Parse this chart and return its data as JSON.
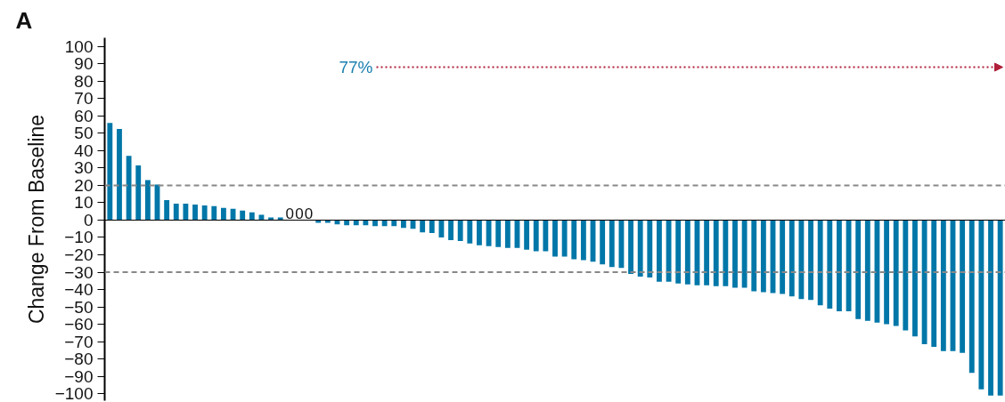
{
  "chart_data": {
    "type": "bar",
    "title": "A",
    "ylabel": "Change From Baseline",
    "categories": [
      null,
      null,
      null,
      null,
      null,
      null,
      null,
      null,
      null,
      null,
      null,
      null,
      null,
      null,
      null,
      null,
      null,
      null,
      null,
      null,
      null,
      null,
      null,
      null,
      null,
      null,
      null,
      null,
      null,
      null,
      null,
      null,
      null,
      null,
      null,
      null,
      null,
      null,
      null,
      null,
      null,
      null,
      null,
      null,
      null,
      null,
      null,
      null,
      null,
      null,
      null,
      null,
      null,
      null,
      null,
      null,
      null,
      null,
      null,
      null,
      null,
      null,
      null,
      null,
      null,
      null,
      null,
      null,
      null,
      null,
      null,
      null,
      null,
      null,
      null,
      null,
      null,
      null,
      null,
      null,
      null,
      null,
      null,
      null,
      null,
      null,
      null,
      null,
      null,
      null,
      null,
      null,
      null,
      null,
      null
    ],
    "values": [
      56,
      52.5,
      37,
      31.5,
      23,
      20.5,
      11.5,
      9.5,
      9.5,
      9,
      8.5,
      8,
      7,
      6.5,
      5.5,
      4.5,
      3,
      1.5,
      1.5,
      0,
      0,
      0,
      -1.5,
      -1.5,
      -2.5,
      -3,
      -3,
      -3,
      -3.5,
      -3.5,
      -3.5,
      -4.5,
      -5,
      -7,
      -7.5,
      -10,
      -11.5,
      -12,
      -13.5,
      -14.5,
      -15,
      -15.5,
      -16,
      -16,
      -17,
      -18,
      -18,
      -21,
      -21,
      -22.5,
      -23,
      -24,
      -25.5,
      -27,
      -27.5,
      -31,
      -32.5,
      -33,
      -35.5,
      -35.5,
      -36.5,
      -37,
      -37.5,
      -37.5,
      -38,
      -38,
      -39,
      -39,
      -41,
      -41.5,
      -42,
      -42.5,
      -44,
      -45.5,
      -46,
      -49,
      -51,
      -52.5,
      -52.5,
      -57,
      -58,
      -59,
      -60,
      -61,
      -63.5,
      -67,
      -71.5,
      -73,
      -75.5,
      -75.5,
      -76.5,
      -88,
      -97.5,
      -101,
      -101
    ],
    "value_labels": [
      null,
      null,
      null,
      null,
      null,
      null,
      null,
      null,
      null,
      null,
      null,
      null,
      null,
      null,
      null,
      null,
      null,
      null,
      null,
      "0",
      "0",
      "0",
      null,
      null,
      null,
      null,
      null,
      null,
      null,
      null,
      null,
      null,
      null,
      null,
      null,
      null,
      null,
      null,
      null,
      null,
      null,
      null,
      null,
      null,
      null,
      null,
      null,
      null,
      null,
      null,
      null,
      null,
      null,
      null,
      null,
      null,
      null,
      null,
      null,
      null,
      null,
      null,
      null,
      null,
      null,
      null,
      null,
      null,
      null,
      null,
      null,
      null,
      null,
      null,
      null,
      null,
      null,
      null,
      null,
      null,
      null,
      null,
      null,
      null,
      null,
      null,
      null,
      null,
      null,
      null,
      null,
      null,
      null,
      null,
      null
    ],
    "color": "#0077a8",
    "ylim": [
      -104,
      105
    ],
    "yticks": [
      -100,
      -90,
      -80,
      -70,
      -60,
      -50,
      -40,
      -30,
      -20,
      -10,
      0,
      10,
      20,
      30,
      40,
      50,
      60,
      70,
      80,
      90,
      100
    ],
    "ref_lines": [
      {
        "axis": "y",
        "value": 20,
        "color": "#888888",
        "line_style": "dashed"
      },
      {
        "axis": "y",
        "value": -30,
        "color": "#888888",
        "line_style": "dashed"
      }
    ],
    "annotations": [
      "77%"
    ],
    "grid": false
  }
}
